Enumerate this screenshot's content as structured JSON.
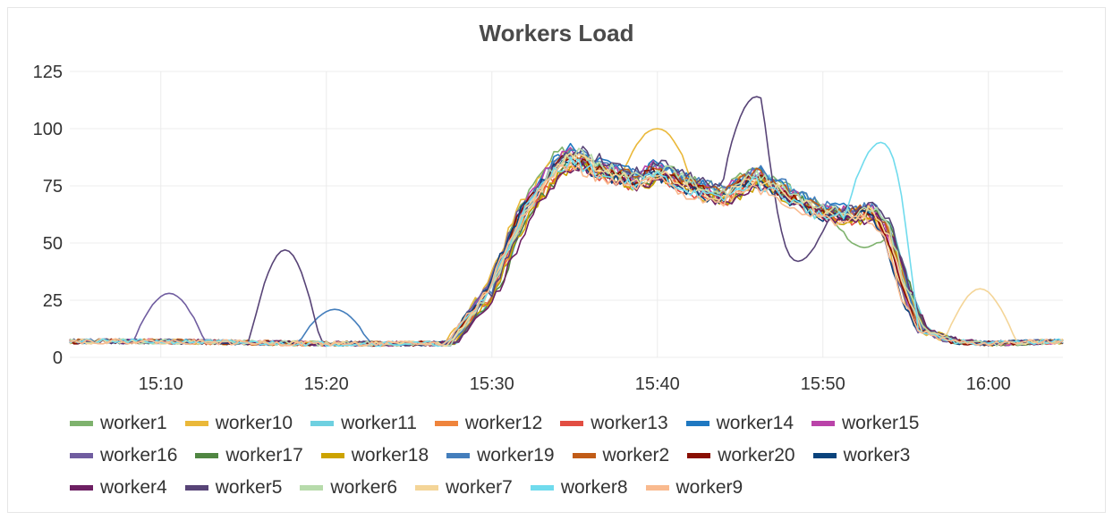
{
  "chart_data": {
    "type": "line",
    "title": "Workers Load",
    "xlabel": "",
    "ylabel": "",
    "x_ticks": [
      "15:10",
      "15:20",
      "15:30",
      "15:40",
      "15:50",
      "16:00"
    ],
    "xlim": [
      "15:04.5",
      "16:04.5"
    ],
    "y_ticks": [
      0,
      25,
      50,
      75,
      100,
      125
    ],
    "ylim": [
      0,
      125
    ],
    "grid": true,
    "legend_position": "bottom",
    "series": [
      {
        "name": "worker1",
        "color": "#7eb26d"
      },
      {
        "name": "worker10",
        "color": "#eab839"
      },
      {
        "name": "worker11",
        "color": "#6ed0e0"
      },
      {
        "name": "worker12",
        "color": "#ef843c"
      },
      {
        "name": "worker13",
        "color": "#e24d42"
      },
      {
        "name": "worker14",
        "color": "#1f78c1"
      },
      {
        "name": "worker15",
        "color": "#ba43a9"
      },
      {
        "name": "worker16",
        "color": "#705da0"
      },
      {
        "name": "worker17",
        "color": "#508642"
      },
      {
        "name": "worker18",
        "color": "#cca300"
      },
      {
        "name": "worker19",
        "color": "#447ebc"
      },
      {
        "name": "worker2",
        "color": "#c15c17"
      },
      {
        "name": "worker20",
        "color": "#890f02"
      },
      {
        "name": "worker3",
        "color": "#0a437c"
      },
      {
        "name": "worker4",
        "color": "#6d1f62"
      },
      {
        "name": "worker5",
        "color": "#584477"
      },
      {
        "name": "worker6",
        "color": "#b7dbab"
      },
      {
        "name": "worker7",
        "color": "#f4d598"
      },
      {
        "name": "worker8",
        "color": "#70dbed"
      },
      {
        "name": "worker9",
        "color": "#f9ba8f"
      }
    ],
    "base_profile": {
      "t": [
        "15:04.5",
        "15:10",
        "15:20",
        "15:27.5",
        "15:30",
        "15:32",
        "15:34",
        "15:35",
        "15:37",
        "15:39",
        "15:40",
        "15:42",
        "15:44",
        "15:46",
        "15:48",
        "15:50",
        "15:52",
        "15:53",
        "15:54",
        "15:55",
        "15:56",
        "15:58",
        "16:00",
        "16:04.5"
      ],
      "values": [
        7,
        7,
        6,
        6,
        30,
        65,
        85,
        89,
        82,
        78,
        83,
        76,
        71,
        80,
        72,
        64,
        63,
        65,
        55,
        30,
        12,
        7,
        6,
        7
      ]
    },
    "peaks": [
      {
        "series": "worker5",
        "t": "15:17.5",
        "value": 47
      },
      {
        "series": "worker5",
        "t": "15:46",
        "value": 114
      },
      {
        "series": "worker5",
        "t": "15:48.5",
        "value": 42
      },
      {
        "series": "worker10",
        "t": "15:40",
        "value": 100
      },
      {
        "series": "worker8",
        "t": "15:53.5",
        "value": 94
      },
      {
        "series": "worker7",
        "t": "15:59.5",
        "value": 30
      },
      {
        "series": "worker16",
        "t": "15:10.5",
        "value": 28
      },
      {
        "series": "worker19",
        "t": "15:20.5",
        "value": 21
      },
      {
        "series": "worker1",
        "t": "15:52.5",
        "value": 48
      }
    ]
  }
}
